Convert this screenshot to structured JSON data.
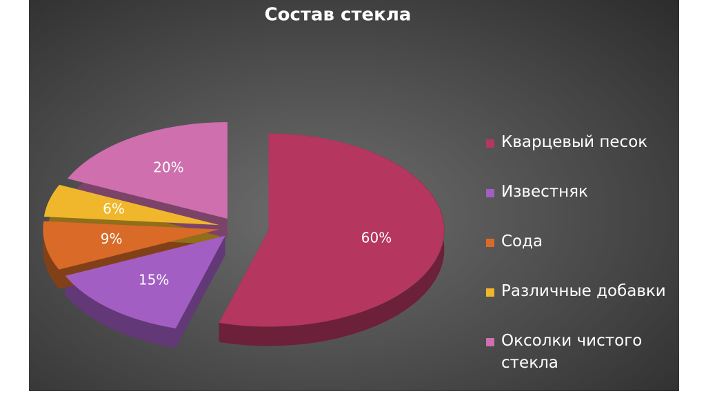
{
  "chart_data": {
    "type": "pie",
    "title": "Состав стекла",
    "categories": [
      "Кварцевый песок",
      "Известняк",
      "Сода",
      "Различные добавки",
      "Оксолки чистого стекла"
    ],
    "values": [
      60,
      15,
      9,
      6,
      20
    ],
    "value_labels": [
      "60%",
      "15%",
      "9%",
      "6%",
      "20%"
    ],
    "colors": [
      "#b5365f",
      "#a35ec4",
      "#d96a28",
      "#f0b72c",
      "#cf6fae"
    ],
    "legend": "right"
  }
}
